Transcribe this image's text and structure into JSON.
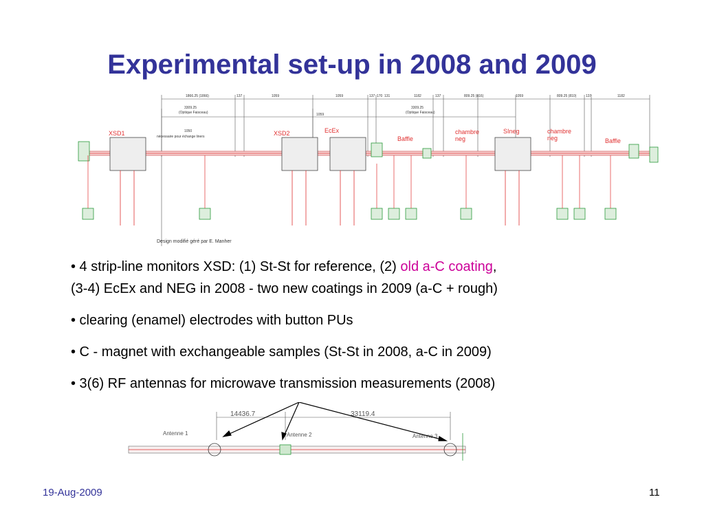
{
  "slide": {
    "title": "Experimental set-up in 2008 and 2009",
    "date": "19-Aug-2009",
    "page_number": "11"
  },
  "drawing": {
    "labels": {
      "xsd1": "XSD1",
      "xsd2": "XSD2",
      "ecex": "EcEx",
      "baffle1": "Baffle",
      "chambre_neg1": "chambre\nneg",
      "sineg": "SIneg",
      "chambre_neg2": "chambre\nneg",
      "baffle2": "Baffle",
      "note_1050": "1050",
      "note_liners": "nécessaire pour échange liners",
      "design_credit": "Design modifié géré par E. Manher"
    },
    "dimensions": [
      "1866.25 (1866)",
      "137",
      "1059",
      "1059",
      "137",
      "170",
      "131",
      "1182",
      "137",
      "809.25 (816)",
      "1059",
      "809.25 (810)",
      "137",
      "1182"
    ],
    "dimension_mid_1": "3309.25",
    "dimension_mid_1_sub": "(Optique Faisceau)",
    "dimension_mid_2": "3309.25",
    "dimension_mid_2_sub": "(Optique Faisceau)",
    "dimension_1059": "1059"
  },
  "bullets": {
    "b1_part1": "• 4 strip-line monitors XSD: (1) St-St for reference, (2) ",
    "b1_accent": "old a-C coating",
    "b1_part2": ",",
    "b1_line2": "(3-4) EcEx and NEG  in 2008  - two new coatings in 2009 (a-C + rough)",
    "b2": "• clearing (enamel) electrodes with button PUs",
    "b3": "• C - magnet with exchangeable samples (St-St in 2008,  a-C in 2009)",
    "b4": "• 3(6) RF antennas for microwave transmission measurements  (2008)"
  },
  "antenna_drawing": {
    "antenne_1": "Antenne 1",
    "antenne_2": "Antenne 2",
    "antenne_3": "Antenne 3",
    "dim_1": "14436.7",
    "dim_2": "33119.4"
  },
  "colors": {
    "title": "#333399",
    "accent": "#cc0099",
    "drawing_red": "#e03030",
    "drawing_green": "#2a9a3a"
  }
}
